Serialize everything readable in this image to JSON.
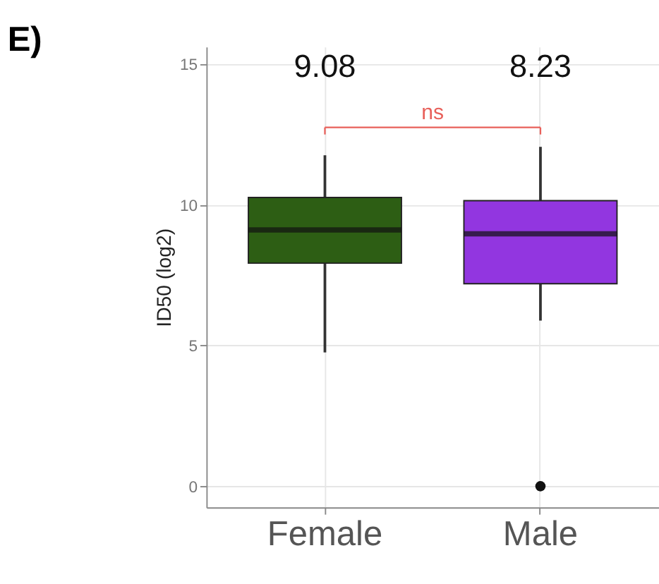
{
  "chart_data": {
    "type": "box",
    "title": "E)",
    "ylabel": "ID50 (log2)",
    "categories": [
      "Female",
      "Male"
    ],
    "colors": [
      "#2d5e14",
      "#9236e0"
    ],
    "boxes": [
      {
        "low": 4.75,
        "q1": 7.92,
        "median": 9.1,
        "q3": 10.25,
        "high": 11.75
      },
      {
        "low": 5.88,
        "q1": 7.19,
        "median": 8.96,
        "q3": 10.14,
        "high": 12.05,
        "outliers": [
          0
        ]
      }
    ],
    "annotations": [
      "9.08",
      "8.23",
      "ns"
    ],
    "ylim": [
      -0.75,
      15.6
    ],
    "yticks": [
      0,
      5,
      10,
      15
    ],
    "grid": true
  }
}
